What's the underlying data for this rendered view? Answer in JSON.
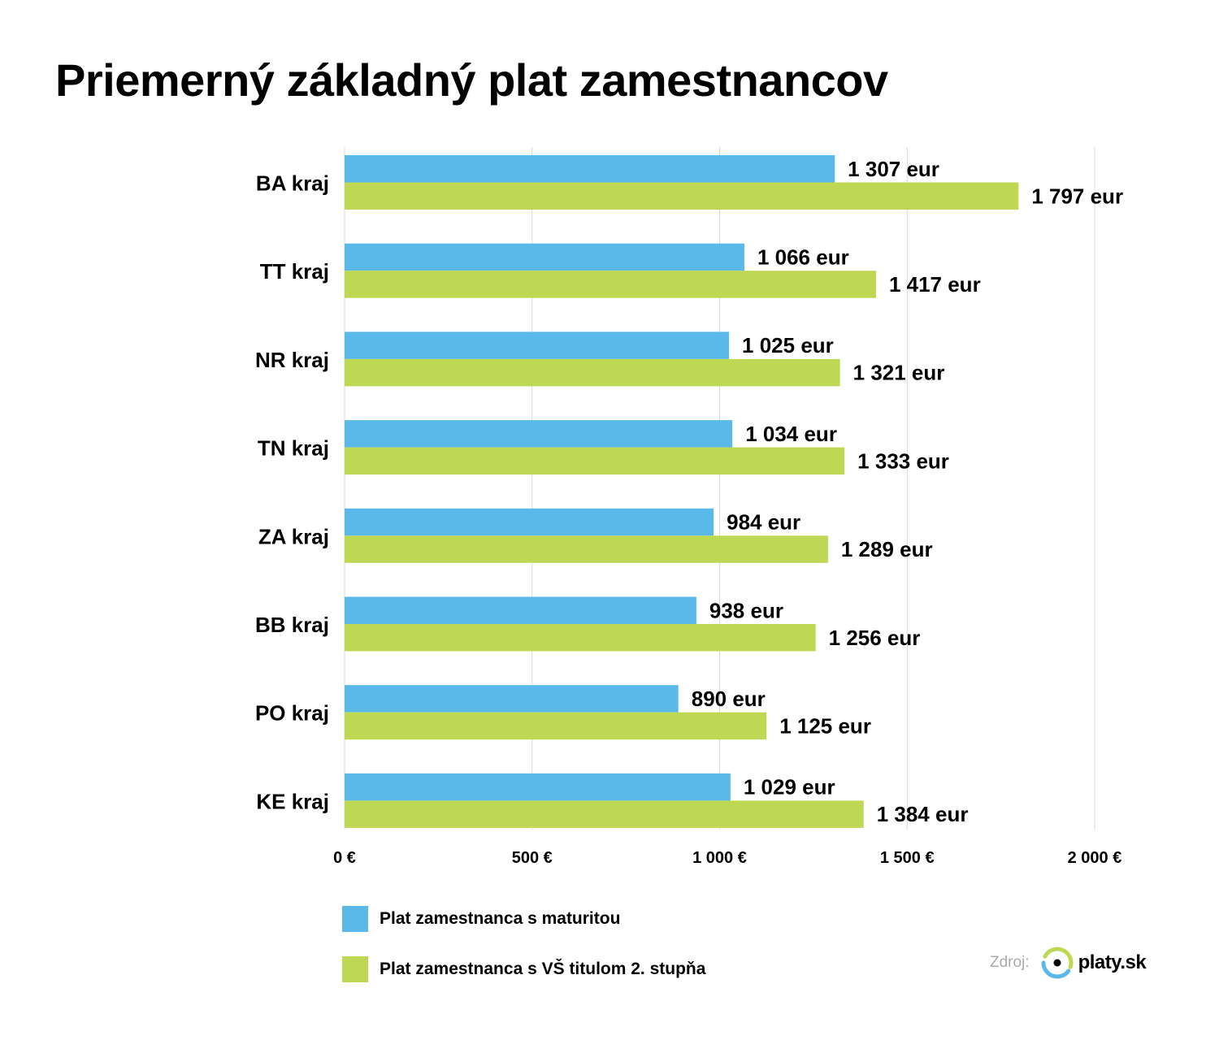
{
  "title": "Priemerný základný plat zamestnancov",
  "chart_data": {
    "type": "bar",
    "orientation": "horizontal",
    "categories": [
      "BA kraj",
      "TT kraj",
      "NR kraj",
      "TN kraj",
      "ZA kraj",
      "BB kraj",
      "PO kraj",
      "KE kraj"
    ],
    "series": [
      {
        "name": "Plat zamestnanca s maturitou",
        "color": "#5bb9ea",
        "values": [
          1307,
          1066,
          1025,
          1034,
          984,
          938,
          890,
          1029
        ],
        "labels": [
          "1 307 eur",
          "1 066 eur",
          "1 025 eur",
          "1 034 eur",
          "984 eur",
          "938 eur",
          "890 eur",
          "1 029 eur"
        ]
      },
      {
        "name": "Plat zamestnanca s VŠ titulom 2. stupňa",
        "color": "#bed853",
        "values": [
          1797,
          1417,
          1321,
          1333,
          1289,
          1256,
          1125,
          1384
        ],
        "labels": [
          "1 797 eur",
          "1 417 eur",
          "1 321 eur",
          "1 333 eur",
          "1 289 eur",
          "1 256 eur",
          "1 125 eur",
          "1 384 eur"
        ]
      }
    ],
    "xlim": [
      0,
      2000
    ],
    "xticks": [
      0,
      500,
      1000,
      1500,
      2000
    ],
    "xtick_labels": [
      "0 €",
      "500 €",
      "1 000 €",
      "1 500 €",
      "2 000 €"
    ],
    "grid": "vertical",
    "legend": "bottom-left"
  },
  "source": {
    "label": "Zdroj:",
    "brand": "platy.sk",
    "logo_icon": "platy-logo-icon",
    "logo_colors": [
      "#5bb9ea",
      "#bed853",
      "#000000"
    ]
  }
}
